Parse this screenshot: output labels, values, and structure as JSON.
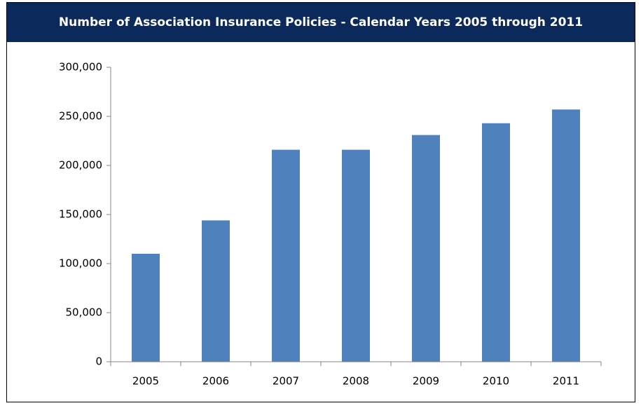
{
  "chart_data": {
    "type": "bar",
    "title": "Number of Association Insurance Policies - Calendar Years 2005 through 2011",
    "categories": [
      "2005",
      "2006",
      "2007",
      "2008",
      "2009",
      "2010",
      "2011"
    ],
    "values": [
      110000,
      144000,
      216000,
      216000,
      231000,
      243000,
      257000
    ],
    "color": "#4f81bd",
    "ylim": [
      0,
      300000
    ],
    "yticks": [
      0,
      {
        "value": 50000,
        "label": "50,000"
      },
      {
        "value": 100000,
        "label": "100,000"
      },
      {
        "value": 150000,
        "label": "150,000"
      },
      {
        "value": 200000,
        "label": "200,000"
      },
      {
        "value": 250000,
        "label": "250,000"
      },
      {
        "value": 300000,
        "label": "300,000"
      }
    ],
    "grid": false
  }
}
